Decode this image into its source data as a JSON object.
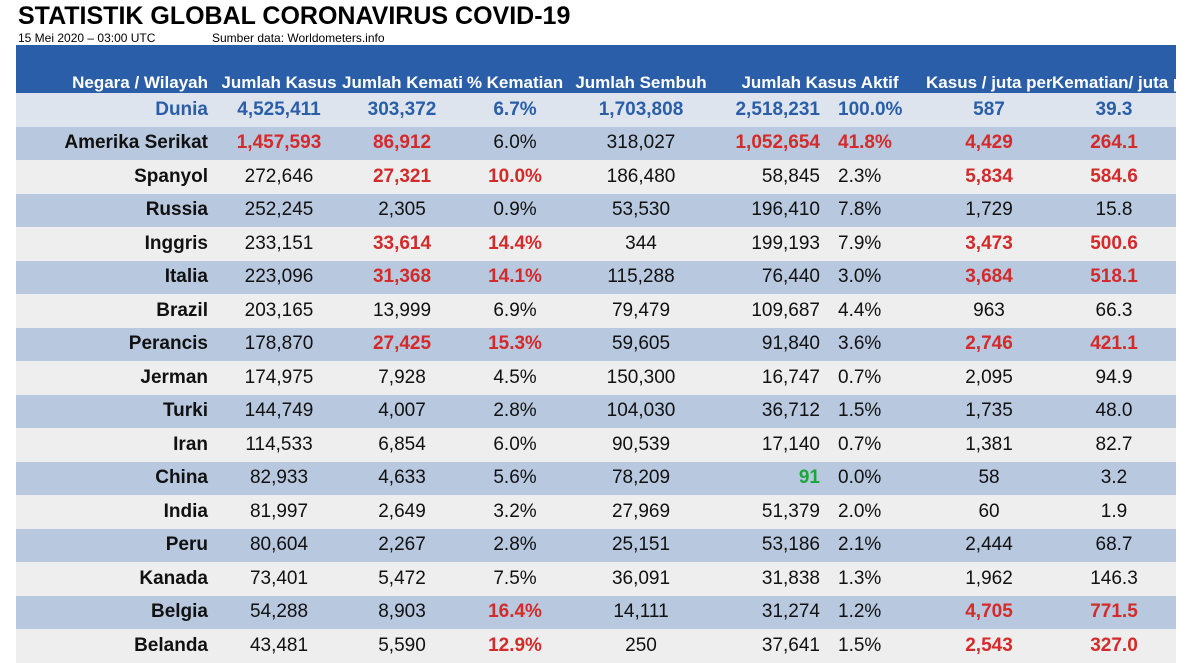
{
  "header": {
    "title": "STATISTIK GLOBAL CORONAVIRUS COVID-19",
    "date": "15 Mei 2020 – 03:00 UTC",
    "source": "Sumber data: Worldometers.info"
  },
  "colors": {
    "header_bg": "#2b5ea8",
    "highlight_red": "#d42a2a",
    "highlight_green": "#1aa83a",
    "world_text": "#2b5ea8"
  },
  "chart_data": {
    "type": "table",
    "title": "STATISTIK GLOBAL CORONAVIRUS COVID-19",
    "columns": [
      "Negara / Wilayah",
      "Jumlah Kasus",
      "Jumlah Kematian",
      "% Kematian",
      "Jumlah Sembuh",
      "Jumlah Kasus Aktif",
      "",
      "Kasus / juta penduduk",
      "Kematian/ juta penduduk"
    ],
    "rows": [
      {
        "cells": [
          "Dunia",
          "4,525,411",
          "303,372",
          "6.7%",
          "1,703,808",
          "2,518,231",
          "100.0%",
          "587",
          "39.3"
        ],
        "hl": [],
        "hl_green": []
      },
      {
        "cells": [
          "Amerika Serikat",
          "1,457,593",
          "86,912",
          "6.0%",
          "318,027",
          "1,052,654",
          "41.8%",
          "4,429",
          "264.1"
        ],
        "hl": [
          1,
          2,
          5,
          6,
          7,
          8
        ],
        "hl_green": []
      },
      {
        "cells": [
          "Spanyol",
          "272,646",
          "27,321",
          "10.0%",
          "186,480",
          "58,845",
          "2.3%",
          "5,834",
          "584.6"
        ],
        "hl": [
          2,
          3,
          7,
          8
        ],
        "hl_green": []
      },
      {
        "cells": [
          "Russia",
          "252,245",
          "2,305",
          "0.9%",
          "53,530",
          "196,410",
          "7.8%",
          "1,729",
          "15.8"
        ],
        "hl": [],
        "hl_green": []
      },
      {
        "cells": [
          "Inggris",
          "233,151",
          "33,614",
          "14.4%",
          "344",
          "199,193",
          "7.9%",
          "3,473",
          "500.6"
        ],
        "hl": [
          2,
          3,
          7,
          8
        ],
        "hl_green": []
      },
      {
        "cells": [
          "Italia",
          "223,096",
          "31,368",
          "14.1%",
          "115,288",
          "76,440",
          "3.0%",
          "3,684",
          "518.1"
        ],
        "hl": [
          2,
          3,
          7,
          8
        ],
        "hl_green": []
      },
      {
        "cells": [
          "Brazil",
          "203,165",
          "13,999",
          "6.9%",
          "79,479",
          "109,687",
          "4.4%",
          "963",
          "66.3"
        ],
        "hl": [],
        "hl_green": []
      },
      {
        "cells": [
          "Perancis",
          "178,870",
          "27,425",
          "15.3%",
          "59,605",
          "91,840",
          "3.6%",
          "2,746",
          "421.1"
        ],
        "hl": [
          2,
          3,
          7,
          8
        ],
        "hl_green": []
      },
      {
        "cells": [
          "Jerman",
          "174,975",
          "7,928",
          "4.5%",
          "150,300",
          "16,747",
          "0.7%",
          "2,095",
          "94.9"
        ],
        "hl": [],
        "hl_green": []
      },
      {
        "cells": [
          "Turki",
          "144,749",
          "4,007",
          "2.8%",
          "104,030",
          "36,712",
          "1.5%",
          "1,735",
          "48.0"
        ],
        "hl": [],
        "hl_green": []
      },
      {
        "cells": [
          "Iran",
          "114,533",
          "6,854",
          "6.0%",
          "90,539",
          "17,140",
          "0.7%",
          "1,381",
          "82.7"
        ],
        "hl": [],
        "hl_green": []
      },
      {
        "cells": [
          "China",
          "82,933",
          "4,633",
          "5.6%",
          "78,209",
          "91",
          "0.0%",
          "58",
          "3.2"
        ],
        "hl": [],
        "hl_green": [
          5
        ]
      },
      {
        "cells": [
          "India",
          "81,997",
          "2,649",
          "3.2%",
          "27,969",
          "51,379",
          "2.0%",
          "60",
          "1.9"
        ],
        "hl": [],
        "hl_green": []
      },
      {
        "cells": [
          "Peru",
          "80,604",
          "2,267",
          "2.8%",
          "25,151",
          "53,186",
          "2.1%",
          "2,444",
          "68.7"
        ],
        "hl": [],
        "hl_green": []
      },
      {
        "cells": [
          "Kanada",
          "73,401",
          "5,472",
          "7.5%",
          "36,091",
          "31,838",
          "1.3%",
          "1,962",
          "146.3"
        ],
        "hl": [],
        "hl_green": []
      },
      {
        "cells": [
          "Belgia",
          "54,288",
          "8,903",
          "16.4%",
          "14,111",
          "31,274",
          "1.2%",
          "4,705",
          "771.5"
        ],
        "hl": [
          3,
          7,
          8
        ],
        "hl_green": []
      },
      {
        "cells": [
          "Belanda",
          "43,481",
          "5,590",
          "12.9%",
          "250",
          "37,641",
          "1.5%",
          "2,543",
          "327.0"
        ],
        "hl": [
          3,
          7,
          8
        ],
        "hl_green": []
      }
    ]
  }
}
